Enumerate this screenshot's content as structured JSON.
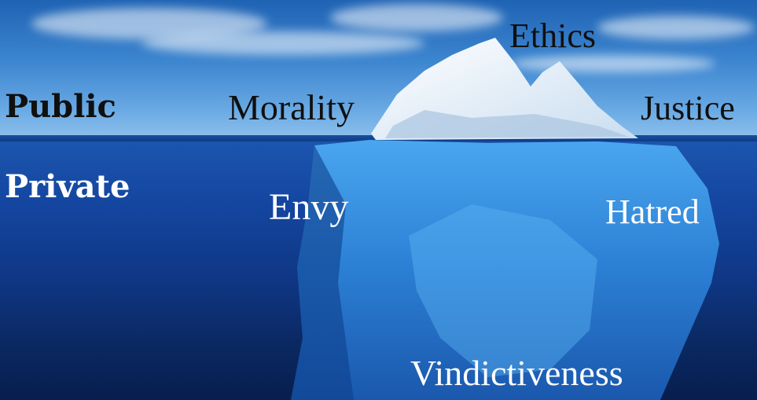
{
  "labels": {
    "public": "Public",
    "private": "Private",
    "ethics": "Ethics",
    "morality": "Morality",
    "justice": "Justice",
    "envy": "Envy",
    "hatred": "Hatred",
    "vindictiveness": "Vindictiveness"
  },
  "colors": {
    "sky": "#3d86d0",
    "water": "#0f3683",
    "ice_above": "#f4f8fc",
    "ice_below": "#2f86d6",
    "text_dark": "#101010",
    "text_light": "#ffffff"
  }
}
